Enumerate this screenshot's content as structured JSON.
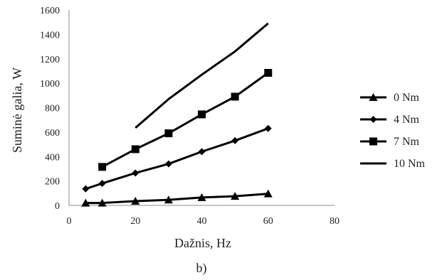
{
  "chart_data": {
    "type": "line",
    "xlabel": "Dažnis, Hz",
    "ylabel": "Suminė galia, W",
    "caption": "b)",
    "xlim": [
      0,
      80
    ],
    "ylim": [
      0,
      1600
    ],
    "xticks": [
      "0",
      "20",
      "40",
      "60",
      "80"
    ],
    "yticks": [
      "0",
      "200",
      "400",
      "600",
      "800",
      "1000",
      "1200",
      "1400",
      "1600"
    ],
    "grid": false,
    "legend_position": "right",
    "series": [
      {
        "name": "0 Nm",
        "marker": "triangle",
        "x": [
          5,
          10,
          20,
          30,
          40,
          50,
          60
        ],
        "y": [
          20,
          20,
          35,
          45,
          65,
          75,
          95
        ]
      },
      {
        "name": "4 Nm",
        "marker": "diamond",
        "x": [
          5,
          10,
          20,
          30,
          40,
          50,
          60
        ],
        "y": [
          135,
          180,
          265,
          340,
          440,
          530,
          630
        ]
      },
      {
        "name": "7 Nm",
        "marker": "square",
        "x": [
          10,
          20,
          30,
          40,
          50,
          60
        ],
        "y": [
          315,
          460,
          590,
          745,
          890,
          1085
        ]
      },
      {
        "name": "10 Nm",
        "marker": "none",
        "x": [
          20,
          30,
          40,
          50,
          60
        ],
        "y": [
          635,
          870,
          1070,
          1260,
          1490
        ]
      }
    ]
  }
}
